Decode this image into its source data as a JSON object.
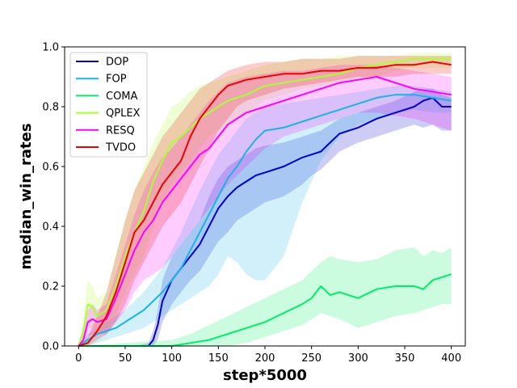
{
  "chart_data": {
    "type": "line",
    "title": "",
    "xlabel": "step*5000",
    "ylabel": "median_win_rates",
    "xlim": [
      -15,
      415
    ],
    "ylim": [
      0,
      1
    ],
    "xticks": [
      0,
      50,
      100,
      150,
      200,
      250,
      300,
      350,
      400
    ],
    "yticks": [
      0.0,
      0.2,
      0.4,
      0.6,
      0.8,
      1.0
    ],
    "xtick_labels": [
      "0",
      "50",
      "100",
      "150",
      "200",
      "250",
      "300",
      "350",
      "400"
    ],
    "ytick_labels": [
      "0.0",
      "0.2",
      "0.4",
      "0.6",
      "0.8",
      "1.0"
    ],
    "grid": false,
    "legend_position": "top-left",
    "series": [
      {
        "name": "DOP",
        "color": "#0000cc",
        "x": [
          0,
          60,
          75,
          80,
          85,
          90,
          100,
          110,
          120,
          130,
          140,
          150,
          160,
          170,
          180,
          190,
          200,
          220,
          240,
          250,
          260,
          270,
          280,
          300,
          320,
          340,
          360,
          370,
          380,
          390,
          400
        ],
        "y": [
          0,
          0,
          0,
          0.02,
          0.07,
          0.15,
          0.22,
          0.26,
          0.3,
          0.34,
          0.4,
          0.46,
          0.5,
          0.53,
          0.55,
          0.57,
          0.58,
          0.6,
          0.63,
          0.64,
          0.65,
          0.68,
          0.71,
          0.73,
          0.76,
          0.78,
          0.8,
          0.82,
          0.83,
          0.8,
          0.8
        ],
        "upper": [
          0,
          0,
          0.01,
          0.05,
          0.12,
          0.22,
          0.3,
          0.34,
          0.38,
          0.42,
          0.5,
          0.56,
          0.6,
          0.62,
          0.64,
          0.66,
          0.67,
          0.68,
          0.7,
          0.71,
          0.72,
          0.74,
          0.76,
          0.78,
          0.8,
          0.82,
          0.85,
          0.86,
          0.86,
          0.84,
          0.83
        ],
        "lower": [
          0,
          0,
          0,
          0,
          0.02,
          0.08,
          0.14,
          0.18,
          0.22,
          0.25,
          0.3,
          0.35,
          0.38,
          0.42,
          0.44,
          0.46,
          0.48,
          0.5,
          0.54,
          0.57,
          0.59,
          0.62,
          0.65,
          0.68,
          0.7,
          0.72,
          0.74,
          0.73,
          0.74,
          0.72,
          0.72
        ]
      },
      {
        "name": "FOP",
        "color": "#1ab3e6",
        "x": [
          0,
          10,
          20,
          30,
          40,
          50,
          60,
          70,
          80,
          90,
          100,
          110,
          120,
          130,
          140,
          150,
          160,
          170,
          180,
          190,
          200,
          220,
          240,
          260,
          280,
          300,
          320,
          340,
          360,
          380,
          400
        ],
        "y": [
          0,
          0.02,
          0.04,
          0.05,
          0.06,
          0.08,
          0.1,
          0.12,
          0.15,
          0.18,
          0.22,
          0.26,
          0.32,
          0.38,
          0.44,
          0.5,
          0.56,
          0.6,
          0.65,
          0.69,
          0.72,
          0.73,
          0.75,
          0.77,
          0.79,
          0.81,
          0.83,
          0.84,
          0.84,
          0.83,
          0.82
        ],
        "upper": [
          0,
          0.04,
          0.06,
          0.08,
          0.1,
          0.12,
          0.15,
          0.18,
          0.22,
          0.26,
          0.32,
          0.38,
          0.45,
          0.52,
          0.58,
          0.64,
          0.68,
          0.72,
          0.76,
          0.78,
          0.8,
          0.81,
          0.82,
          0.83,
          0.84,
          0.85,
          0.86,
          0.87,
          0.87,
          0.86,
          0.85
        ],
        "lower": [
          0,
          0,
          0.01,
          0.02,
          0.03,
          0.04,
          0.05,
          0.06,
          0.08,
          0.1,
          0.12,
          0.14,
          0.16,
          0.18,
          0.2,
          0.24,
          0.3,
          0.28,
          0.24,
          0.22,
          0.22,
          0.3,
          0.48,
          0.62,
          0.7,
          0.74,
          0.76,
          0.78,
          0.79,
          0.78,
          0.78
        ]
      },
      {
        "name": "COMA",
        "color": "#00ee66",
        "x": [
          0,
          50,
          100,
          120,
          140,
          160,
          180,
          200,
          220,
          240,
          250,
          260,
          270,
          280,
          300,
          320,
          340,
          360,
          370,
          380,
          390,
          400
        ],
        "y": [
          0,
          0,
          0,
          0.01,
          0.02,
          0.04,
          0.06,
          0.08,
          0.11,
          0.14,
          0.16,
          0.2,
          0.17,
          0.18,
          0.16,
          0.19,
          0.2,
          0.2,
          0.19,
          0.22,
          0.23,
          0.24
        ],
        "upper": [
          0,
          0.01,
          0.02,
          0.04,
          0.07,
          0.1,
          0.13,
          0.16,
          0.19,
          0.22,
          0.25,
          0.28,
          0.3,
          0.29,
          0.28,
          0.29,
          0.32,
          0.33,
          0.3,
          0.32,
          0.31,
          0.33
        ],
        "lower": [
          0,
          0,
          0,
          0,
          0,
          0,
          0.01,
          0.03,
          0.05,
          0.07,
          0.09,
          0.11,
          0.1,
          0.09,
          0.06,
          0.08,
          0.1,
          0.11,
          0.12,
          0.13,
          0.14,
          0.14
        ]
      },
      {
        "name": "QPLEX",
        "color": "#aaff33",
        "x": [
          0,
          5,
          10,
          15,
          20,
          30,
          40,
          50,
          60,
          70,
          80,
          90,
          100,
          110,
          120,
          130,
          140,
          150,
          160,
          180,
          200,
          220,
          240,
          260,
          280,
          300,
          320,
          340,
          360,
          380,
          400
        ],
        "y": [
          0,
          0.05,
          0.14,
          0.13,
          0.1,
          0.12,
          0.2,
          0.3,
          0.38,
          0.45,
          0.55,
          0.62,
          0.68,
          0.7,
          0.73,
          0.76,
          0.78,
          0.8,
          0.82,
          0.84,
          0.87,
          0.88,
          0.89,
          0.9,
          0.91,
          0.93,
          0.94,
          0.95,
          0.96,
          0.96,
          0.96
        ],
        "upper": [
          0,
          0.1,
          0.22,
          0.2,
          0.16,
          0.18,
          0.3,
          0.42,
          0.52,
          0.6,
          0.68,
          0.74,
          0.8,
          0.82,
          0.85,
          0.87,
          0.88,
          0.89,
          0.9,
          0.92,
          0.94,
          0.95,
          0.96,
          0.96,
          0.97,
          0.97,
          0.97,
          0.97,
          0.98,
          0.98,
          0.98
        ],
        "lower": [
          0,
          0.01,
          0.06,
          0.06,
          0.04,
          0.06,
          0.1,
          0.18,
          0.24,
          0.3,
          0.4,
          0.48,
          0.54,
          0.58,
          0.62,
          0.66,
          0.7,
          0.72,
          0.74,
          0.78,
          0.82,
          0.84,
          0.86,
          0.87,
          0.88,
          0.89,
          0.9,
          0.92,
          0.93,
          0.93,
          0.93
        ]
      },
      {
        "name": "RESQ",
        "color": "#ff00ff",
        "x": [
          0,
          5,
          10,
          15,
          20,
          30,
          40,
          50,
          60,
          70,
          80,
          90,
          100,
          110,
          120,
          130,
          140,
          150,
          160,
          180,
          200,
          220,
          240,
          260,
          280,
          300,
          320,
          340,
          360,
          380,
          400
        ],
        "y": [
          0,
          0.02,
          0.08,
          0.09,
          0.08,
          0.09,
          0.16,
          0.24,
          0.32,
          0.38,
          0.42,
          0.48,
          0.52,
          0.56,
          0.6,
          0.64,
          0.66,
          0.7,
          0.74,
          0.78,
          0.8,
          0.82,
          0.84,
          0.86,
          0.88,
          0.89,
          0.9,
          0.88,
          0.86,
          0.85,
          0.84
        ],
        "upper": [
          0,
          0.04,
          0.12,
          0.14,
          0.12,
          0.14,
          0.24,
          0.34,
          0.44,
          0.52,
          0.58,
          0.63,
          0.66,
          0.7,
          0.74,
          0.78,
          0.82,
          0.85,
          0.88,
          0.9,
          0.91,
          0.92,
          0.92,
          0.93,
          0.94,
          0.94,
          0.94,
          0.93,
          0.92,
          0.91,
          0.9
        ],
        "lower": [
          0,
          0,
          0.03,
          0.04,
          0.04,
          0.04,
          0.08,
          0.12,
          0.18,
          0.22,
          0.24,
          0.26,
          0.3,
          0.34,
          0.38,
          0.42,
          0.46,
          0.5,
          0.54,
          0.6,
          0.66,
          0.7,
          0.72,
          0.74,
          0.76,
          0.78,
          0.78,
          0.77,
          0.76,
          0.74,
          0.72
        ]
      },
      {
        "name": "TVDO",
        "color": "#ee0000",
        "x": [
          0,
          10,
          20,
          30,
          40,
          50,
          60,
          70,
          80,
          90,
          100,
          110,
          120,
          130,
          140,
          150,
          160,
          170,
          180,
          200,
          220,
          240,
          260,
          280,
          300,
          320,
          340,
          360,
          380,
          400
        ],
        "y": [
          0,
          0.01,
          0.05,
          0.1,
          0.18,
          0.28,
          0.38,
          0.42,
          0.48,
          0.54,
          0.58,
          0.62,
          0.7,
          0.76,
          0.8,
          0.84,
          0.87,
          0.88,
          0.89,
          0.9,
          0.91,
          0.91,
          0.92,
          0.92,
          0.93,
          0.93,
          0.94,
          0.94,
          0.95,
          0.94
        ],
        "upper": [
          0,
          0.03,
          0.1,
          0.18,
          0.3,
          0.42,
          0.52,
          0.58,
          0.64,
          0.7,
          0.74,
          0.78,
          0.82,
          0.86,
          0.88,
          0.9,
          0.92,
          0.93,
          0.94,
          0.95,
          0.95,
          0.96,
          0.96,
          0.96,
          0.97,
          0.97,
          0.97,
          0.97,
          0.97,
          0.97
        ],
        "lower": [
          0,
          0,
          0.02,
          0.04,
          0.08,
          0.14,
          0.22,
          0.28,
          0.34,
          0.4,
          0.44,
          0.48,
          0.54,
          0.6,
          0.66,
          0.72,
          0.76,
          0.8,
          0.82,
          0.84,
          0.86,
          0.87,
          0.88,
          0.89,
          0.9,
          0.9,
          0.9,
          0.91,
          0.91,
          0.91
        ]
      }
    ]
  }
}
